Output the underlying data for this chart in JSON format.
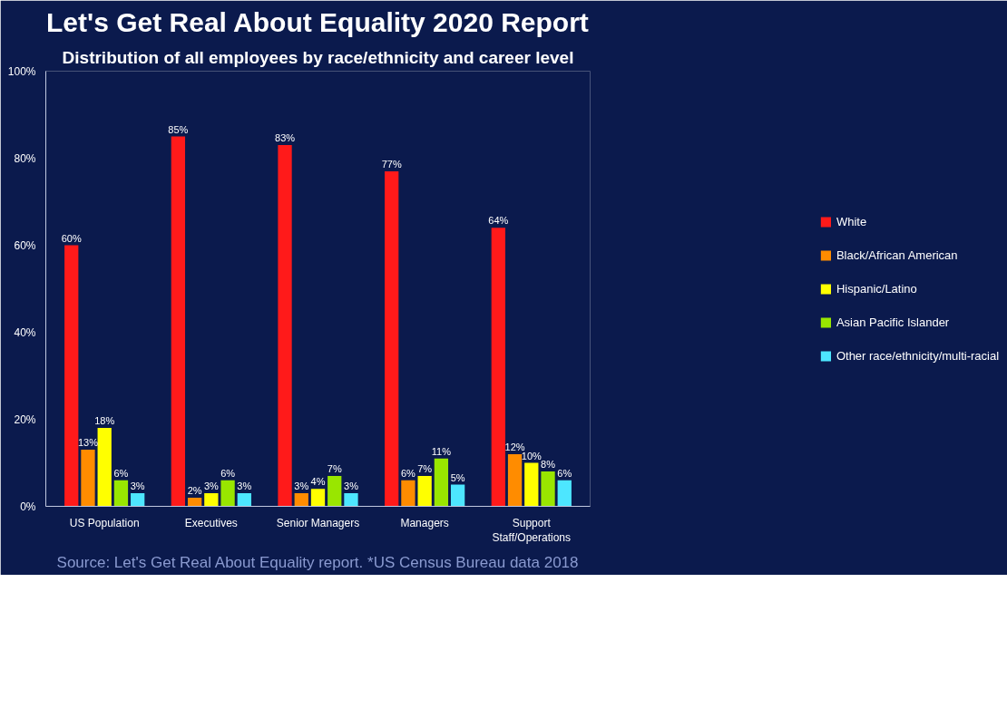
{
  "chart_data": {
    "type": "bar",
    "title": "Let's Get Real About Equality 2020 Report",
    "subtitle": "Distribution of all employees by race/ethnicity and career level",
    "categories": [
      "US Population",
      "Executives",
      "Senior Managers",
      "Managers",
      "Support Staff/Operations"
    ],
    "series": [
      {
        "name": "White",
        "color": "#ff1a1a",
        "values": [
          60,
          85,
          83,
          77,
          64
        ],
        "value_labels": [
          "60%",
          "85%",
          "83%",
          "77%",
          "64%"
        ]
      },
      {
        "name": "Black/African American",
        "color": "#ff8c00",
        "values": [
          13,
          2,
          3,
          6,
          12
        ],
        "value_labels": [
          "13%",
          "2%",
          "3%",
          "6%",
          "12%"
        ]
      },
      {
        "name": "Hispanic/Latino",
        "color": "#ffff00",
        "values": [
          18,
          3,
          4,
          7,
          10
        ],
        "value_labels": [
          "18%",
          "3%",
          "4%",
          "7%",
          "10%"
        ]
      },
      {
        "name": "Asian Pacific Islander",
        "color": "#99e600",
        "values": [
          6,
          6,
          7,
          11,
          8
        ],
        "value_labels": [
          "6%",
          "6%",
          "7%",
          "11%",
          "8%"
        ]
      },
      {
        "name": "Other race/ethnicity/multi-racial",
        "color": "#4de6ff",
        "values": [
          3,
          3,
          3,
          5,
          6
        ],
        "value_labels": [
          "3%",
          "3%",
          "3%",
          "5%",
          "6%"
        ]
      }
    ],
    "ylim": [
      0,
      100
    ],
    "yticks": [
      {
        "value": 0,
        "label": "0%"
      },
      {
        "value": 20,
        "label": "20%"
      },
      {
        "value": 40,
        "label": "40%"
      },
      {
        "value": 60,
        "label": "60%"
      },
      {
        "value": 80,
        "label": "80%"
      },
      {
        "value": 100,
        "label": "100%"
      }
    ],
    "grid": false,
    "legend": "right",
    "annotations": [
      "Source: Let's Get Real About Equality report. *US Census Bureau data 2018"
    ]
  }
}
